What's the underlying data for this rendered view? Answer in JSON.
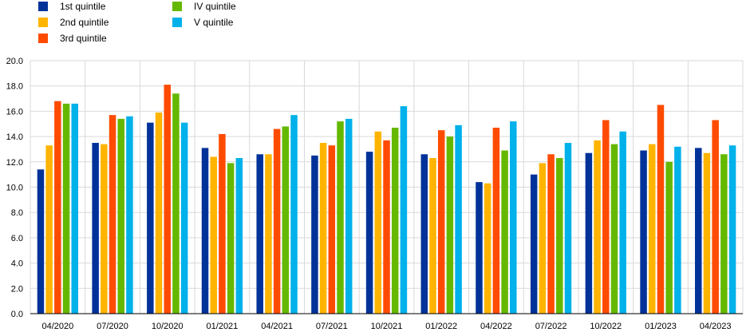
{
  "chart_data": {
    "type": "bar",
    "title": "",
    "xlabel": "",
    "ylabel": "",
    "ylim": [
      0,
      20
    ],
    "yticks": [
      "0.0",
      "2.0",
      "4.0",
      "6.0",
      "8.0",
      "10.0",
      "12.0",
      "14.0",
      "16.0",
      "18.0",
      "20.0"
    ],
    "grid": true,
    "legend_position": "top-left",
    "categories": [
      "04/2020",
      "07/2020",
      "10/2020",
      "01/2021",
      "04/2021",
      "07/2021",
      "10/2021",
      "01/2022",
      "04/2022",
      "07/2022",
      "10/2022",
      "01/2023",
      "04/2023"
    ],
    "series": [
      {
        "name": "1st quintile",
        "color": "#003299",
        "values": [
          11.4,
          13.5,
          15.1,
          13.1,
          12.6,
          12.5,
          12.8,
          12.6,
          10.4,
          11.0,
          12.7,
          12.9,
          13.1
        ]
      },
      {
        "name": "2nd quintile",
        "color": "#FFB400",
        "values": [
          13.3,
          13.4,
          15.9,
          12.4,
          12.6,
          13.5,
          14.4,
          12.3,
          10.3,
          11.9,
          13.7,
          13.4,
          12.7
        ]
      },
      {
        "name": "3rd quintile",
        "color": "#FF4B00",
        "values": [
          16.8,
          15.7,
          18.1,
          14.2,
          14.6,
          13.3,
          13.7,
          14.5,
          14.7,
          12.6,
          15.3,
          16.5,
          15.3
        ]
      },
      {
        "name": "IV quintile",
        "color": "#65B800",
        "values": [
          16.6,
          15.4,
          17.4,
          11.9,
          14.8,
          15.2,
          14.7,
          14.0,
          12.9,
          12.3,
          13.4,
          12.0,
          12.6
        ]
      },
      {
        "name": "V quintile",
        "color": "#00B1EA",
        "values": [
          16.6,
          15.6,
          15.1,
          12.3,
          15.7,
          15.4,
          16.4,
          14.9,
          15.2,
          13.5,
          14.4,
          13.2,
          13.3
        ]
      }
    ]
  }
}
